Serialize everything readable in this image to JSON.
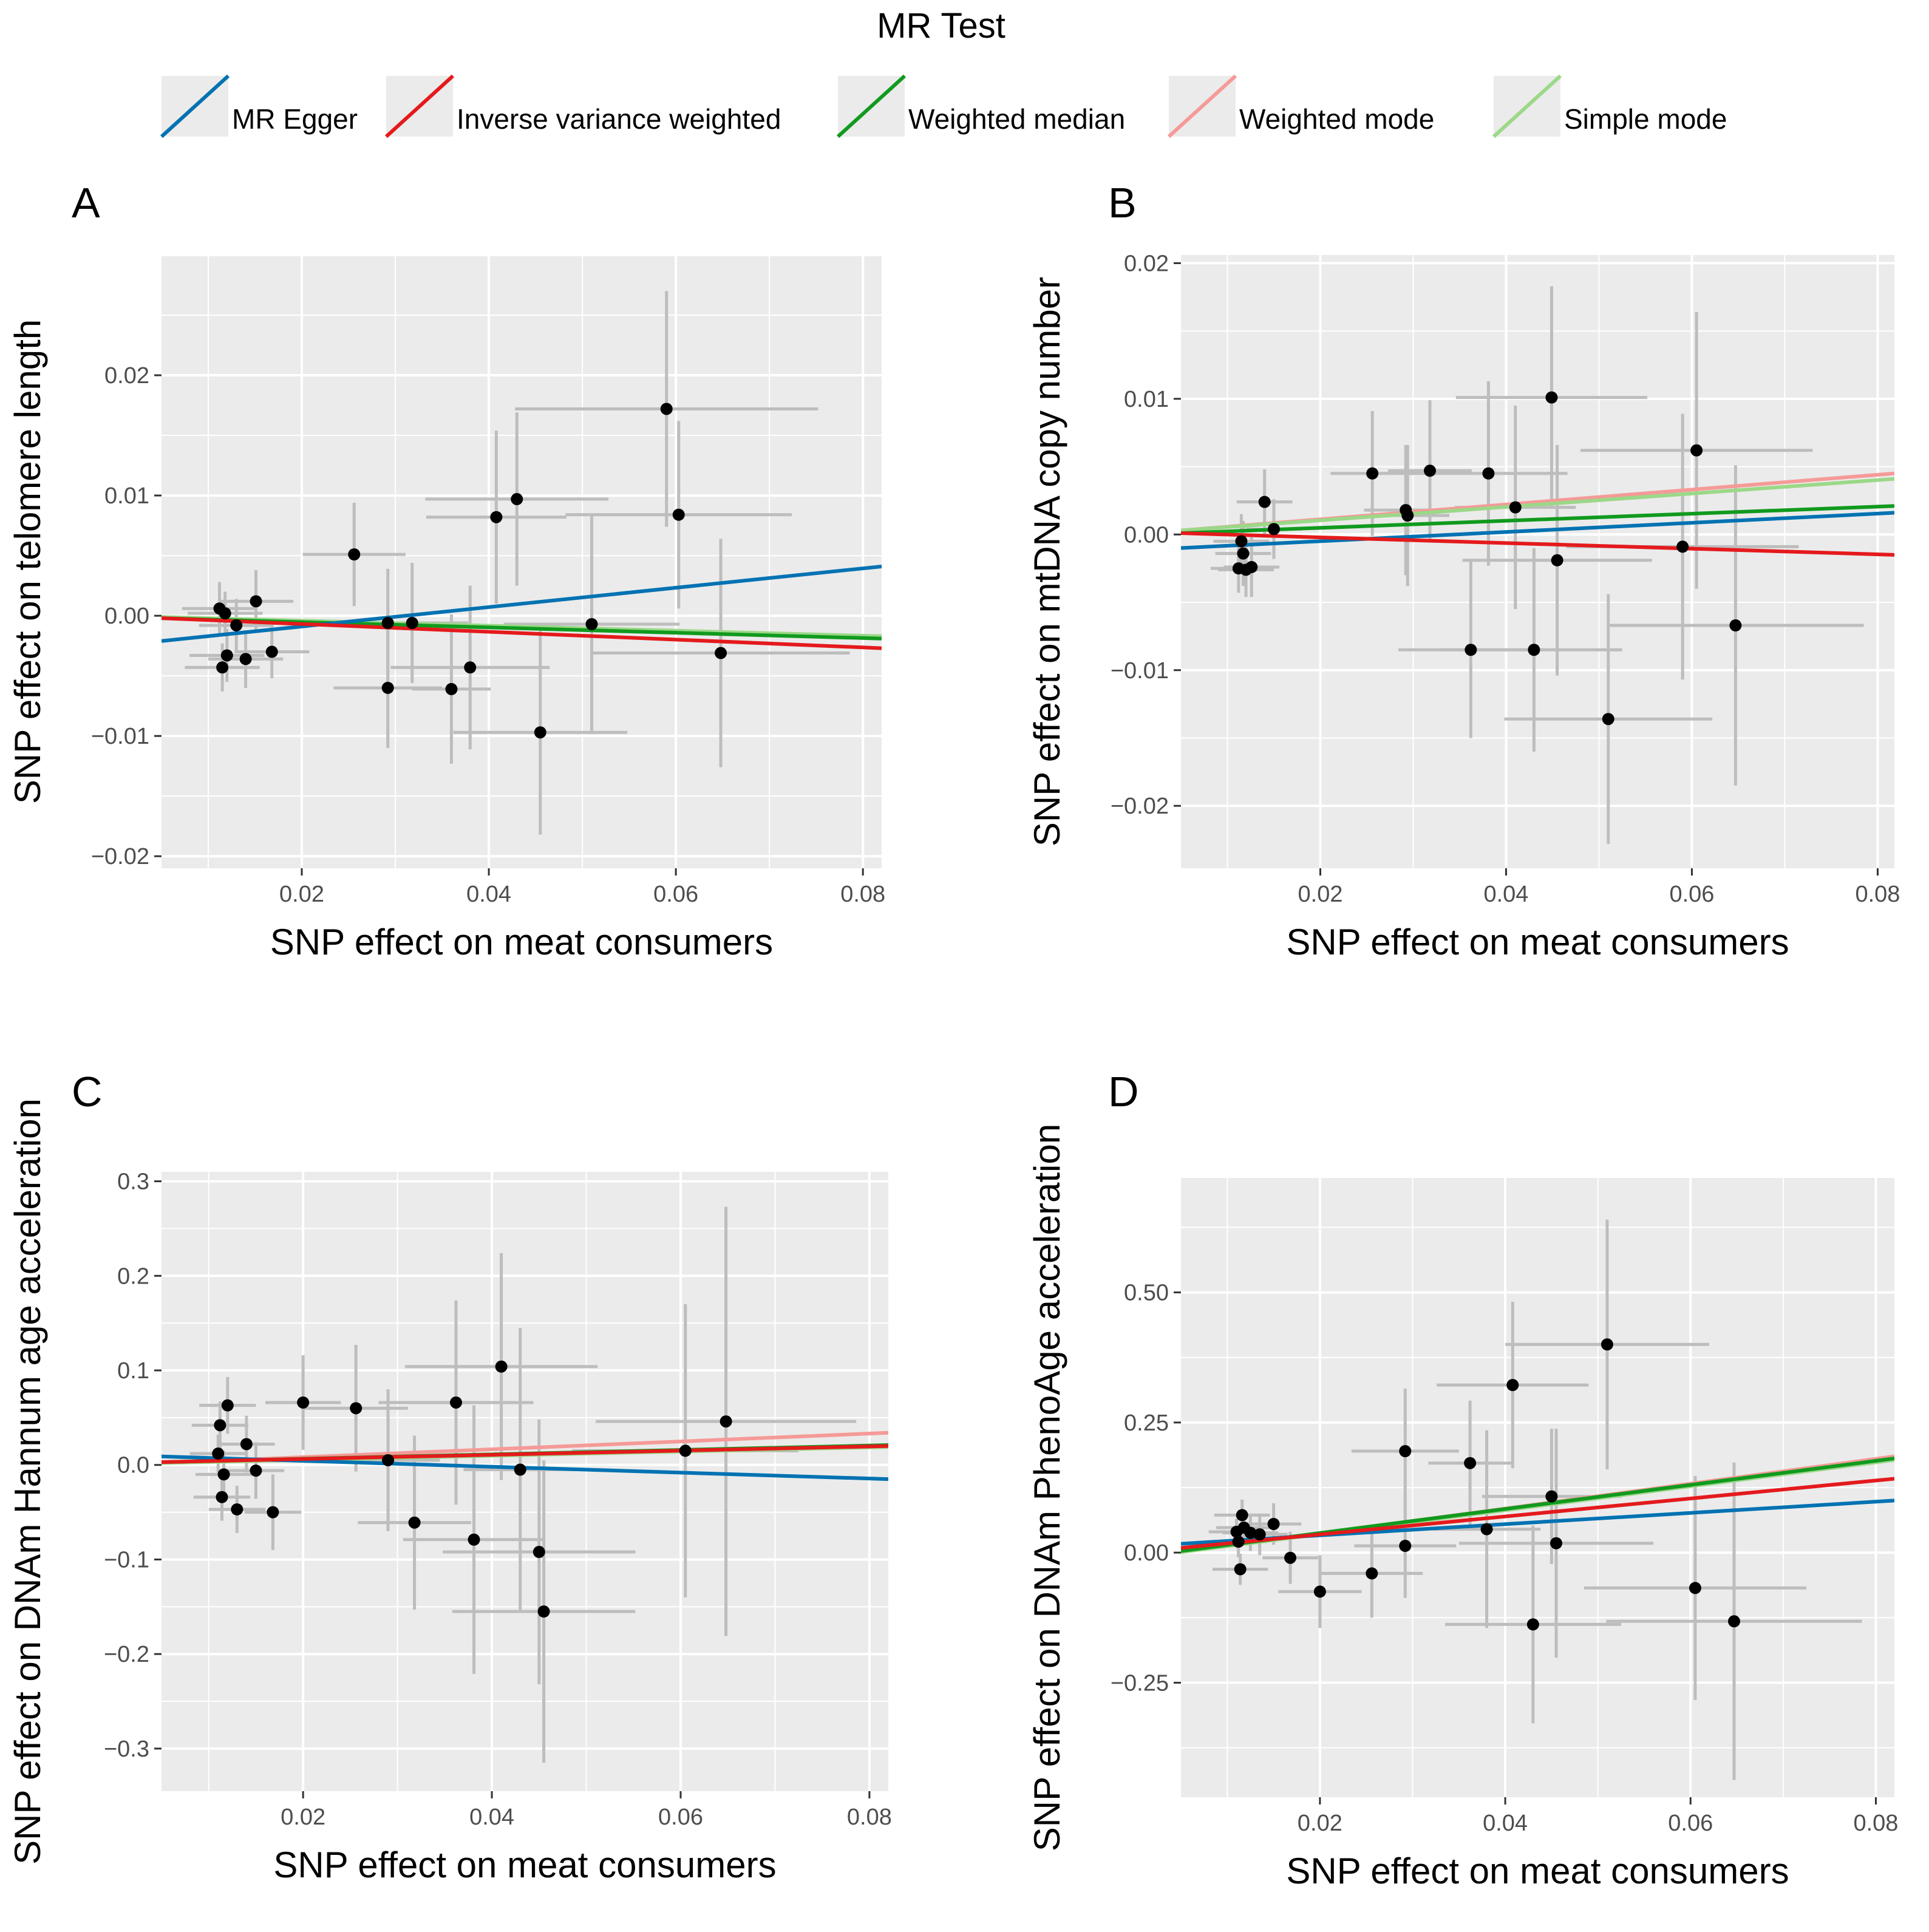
{
  "legend": {
    "title": "MR Test",
    "methods": [
      {
        "name": "MR Egger",
        "color": "#0072B2"
      },
      {
        "name": "Inverse variance weighted",
        "color": "#E41A1C"
      },
      {
        "name": "Weighted median",
        "color": "#119A1E"
      },
      {
        "name": "Weighted mode",
        "color": "#F59A98"
      },
      {
        "name": "Simple mode",
        "color": "#9BD888"
      }
    ]
  },
  "chart_data": [
    {
      "type": "scatter",
      "panel": "A",
      "xlabel": "SNP effect on meat consumers",
      "ylabel": "SNP effect on telomere length",
      "xlim": [
        0.005,
        0.082
      ],
      "ylim": [
        -0.021,
        0.03
      ],
      "xticks": [
        0.02,
        0.04,
        0.06,
        0.08
      ],
      "xtick_labels": [
        "0.02",
        "0.04",
        "0.06",
        "0.08"
      ],
      "yticks": [
        -0.02,
        -0.01,
        0.0,
        0.01,
        0.02
      ],
      "ytick_labels": [
        "−0.02",
        "−0.01",
        "0.00",
        "0.01",
        "0.02"
      ],
      "points": [
        {
          "x": 0.0112,
          "y": 0.0006,
          "sx": 0.004,
          "sy": 0.0022
        },
        {
          "x": 0.0115,
          "y": -0.0043,
          "sx": 0.004,
          "sy": 0.002
        },
        {
          "x": 0.0118,
          "y": 0.0002,
          "sx": 0.004,
          "sy": 0.0018
        },
        {
          "x": 0.012,
          "y": -0.0033,
          "sx": 0.004,
          "sy": 0.0022
        },
        {
          "x": 0.013,
          "y": -0.0008,
          "sx": 0.004,
          "sy": 0.0022
        },
        {
          "x": 0.014,
          "y": -0.0036,
          "sx": 0.004,
          "sy": 0.0024
        },
        {
          "x": 0.0151,
          "y": 0.0012,
          "sx": 0.004,
          "sy": 0.0026
        },
        {
          "x": 0.0168,
          "y": -0.003,
          "sx": 0.004,
          "sy": 0.0022
        },
        {
          "x": 0.0256,
          "y": 0.0051,
          "sx": 0.0055,
          "sy": 0.0043
        },
        {
          "x": 0.0292,
          "y": -0.006,
          "sx": 0.0058,
          "sy": 0.005
        },
        {
          "x": 0.0292,
          "y": -0.0006,
          "sx": 0.0055,
          "sy": 0.0045
        },
        {
          "x": 0.0318,
          "y": -0.0006,
          "sx": 0.006,
          "sy": 0.005
        },
        {
          "x": 0.036,
          "y": -0.0061,
          "sx": 0.0042,
          "sy": 0.0062
        },
        {
          "x": 0.038,
          "y": -0.0043,
          "sx": 0.0085,
          "sy": 0.0068
        },
        {
          "x": 0.0408,
          "y": 0.0082,
          "sx": 0.0075,
          "sy": 0.0072
        },
        {
          "x": 0.043,
          "y": 0.0097,
          "sx": 0.0098,
          "sy": 0.0072
        },
        {
          "x": 0.0455,
          "y": -0.0097,
          "sx": 0.0093,
          "sy": 0.0085
        },
        {
          "x": 0.051,
          "y": -0.0007,
          "sx": 0.0094,
          "sy": 0.009
        },
        {
          "x": 0.059,
          "y": 0.0172,
          "sx": 0.0162,
          "sy": 0.0098
        },
        {
          "x": 0.0603,
          "y": 0.0084,
          "sx": 0.0121,
          "sy": 0.0078
        },
        {
          "x": 0.0648,
          "y": -0.0031,
          "sx": 0.0138,
          "sy": 0.0095
        }
      ],
      "lines": [
        {
          "method": "MR Egger",
          "x": [
            0.005,
            0.082
          ],
          "y": [
            -0.0021,
            0.0041
          ]
        },
        {
          "method": "Inverse variance weighted",
          "x": [
            0.005,
            0.082
          ],
          "y": [
            -0.0002,
            -0.0027
          ]
        },
        {
          "method": "Weighted median",
          "x": [
            0.005,
            0.082
          ],
          "y": [
            -0.0002,
            -0.0019
          ]
        },
        {
          "method": "Weighted mode",
          "x": [
            0.005,
            0.082
          ],
          "y": [
            -0.0001,
            -0.0018
          ]
        },
        {
          "method": "Simple mode",
          "x": [
            0.005,
            0.082
          ],
          "y": [
            -0.0001,
            -0.0017
          ]
        }
      ]
    },
    {
      "type": "scatter",
      "panel": "B",
      "xlabel": "SNP effect on meat consumers",
      "ylabel": "SNP effect on mtDNA copy number",
      "xlim": [
        0.005,
        0.0818
      ],
      "ylim": [
        -0.0246,
        0.0206
      ],
      "xticks": [
        0.02,
        0.04,
        0.06,
        0.08
      ],
      "xtick_labels": [
        "0.02",
        "0.04",
        "0.06",
        "0.08"
      ],
      "yticks": [
        -0.02,
        -0.01,
        0.0,
        0.01,
        0.02
      ],
      "ytick_labels": [
        "−0.02",
        "−0.01",
        "0.00",
        "0.01",
        "0.02"
      ],
      "points": [
        {
          "x": 0.0112,
          "y": -0.0025,
          "sx": 0.003,
          "sy": 0.0018
        },
        {
          "x": 0.0115,
          "y": -0.0005,
          "sx": 0.003,
          "sy": 0.002
        },
        {
          "x": 0.0117,
          "y": -0.0014,
          "sx": 0.003,
          "sy": 0.0024
        },
        {
          "x": 0.012,
          "y": -0.0026,
          "sx": 0.003,
          "sy": 0.002
        },
        {
          "x": 0.0126,
          "y": -0.0024,
          "sx": 0.003,
          "sy": 0.0022
        },
        {
          "x": 0.014,
          "y": 0.0024,
          "sx": 0.003,
          "sy": 0.0024
        },
        {
          "x": 0.015,
          "y": 0.0004,
          "sx": 0.003,
          "sy": 0.0022
        },
        {
          "x": 0.0256,
          "y": 0.0045,
          "sx": 0.0045,
          "sy": 0.0046
        },
        {
          "x": 0.0292,
          "y": 0.0018,
          "sx": 0.0045,
          "sy": 0.0048
        },
        {
          "x": 0.0294,
          "y": 0.0014,
          "sx": 0.0045,
          "sy": 0.0052
        },
        {
          "x": 0.0318,
          "y": 0.0047,
          "sx": 0.0045,
          "sy": 0.0052
        },
        {
          "x": 0.0362,
          "y": -0.0085,
          "sx": 0.0078,
          "sy": 0.0065
        },
        {
          "x": 0.0381,
          "y": 0.0045,
          "sx": 0.0085,
          "sy": 0.0068
        },
        {
          "x": 0.041,
          "y": 0.002,
          "sx": 0.0065,
          "sy": 0.0075
        },
        {
          "x": 0.043,
          "y": -0.0085,
          "sx": 0.0095,
          "sy": 0.0075
        },
        {
          "x": 0.0449,
          "y": 0.0101,
          "sx": 0.0103,
          "sy": 0.0082
        },
        {
          "x": 0.0455,
          "y": -0.0019,
          "sx": 0.0102,
          "sy": 0.0085
        },
        {
          "x": 0.051,
          "y": -0.0136,
          "sx": 0.0112,
          "sy": 0.0092
        },
        {
          "x": 0.059,
          "y": -0.0009,
          "sx": 0.0125,
          "sy": 0.0098
        },
        {
          "x": 0.0605,
          "y": 0.0062,
          "sx": 0.0125,
          "sy": 0.0102
        },
        {
          "x": 0.0647,
          "y": -0.0067,
          "sx": 0.0138,
          "sy": 0.0118
        }
      ],
      "lines": [
        {
          "method": "MR Egger",
          "x": [
            0.005,
            0.0818
          ],
          "y": [
            -0.001,
            0.0016
          ]
        },
        {
          "method": "Inverse variance weighted",
          "x": [
            0.005,
            0.0818
          ],
          "y": [
            0.0001,
            -0.0015
          ]
        },
        {
          "method": "Weighted median",
          "x": [
            0.005,
            0.0818
          ],
          "y": [
            0.0001,
            0.0021
          ]
        },
        {
          "method": "Weighted mode",
          "x": [
            0.005,
            0.0818
          ],
          "y": [
            0.0003,
            0.0045
          ]
        },
        {
          "method": "Simple mode",
          "x": [
            0.005,
            0.0818
          ],
          "y": [
            0.0003,
            0.0041
          ]
        }
      ]
    },
    {
      "type": "scatter",
      "panel": "C",
      "xlabel": "SNP effect on meat consumers",
      "ylabel": "SNP effect on DNAm Hannum age acceleration",
      "xlim": [
        0.005,
        0.082
      ],
      "ylim": [
        -0.345,
        0.31
      ],
      "xticks": [
        0.02,
        0.04,
        0.06,
        0.08
      ],
      "xtick_labels": [
        "0.02",
        "0.04",
        "0.06",
        "0.08"
      ],
      "yticks": [
        -0.3,
        -0.2,
        -0.1,
        0.0,
        0.1,
        0.2,
        0.3
      ],
      "ytick_labels": [
        "−0.3",
        "−0.2",
        "−0.1",
        "0.0",
        "0.1",
        "0.2",
        "0.3"
      ],
      "points": [
        {
          "x": 0.011,
          "y": 0.012,
          "sx": 0.003,
          "sy": 0.02
        },
        {
          "x": 0.0112,
          "y": 0.042,
          "sx": 0.003,
          "sy": 0.025
        },
        {
          "x": 0.0114,
          "y": -0.034,
          "sx": 0.003,
          "sy": 0.025
        },
        {
          "x": 0.0116,
          "y": -0.01,
          "sx": 0.003,
          "sy": 0.025
        },
        {
          "x": 0.012,
          "y": 0.063,
          "sx": 0.003,
          "sy": 0.03
        },
        {
          "x": 0.013,
          "y": -0.047,
          "sx": 0.003,
          "sy": 0.025
        },
        {
          "x": 0.014,
          "y": 0.022,
          "sx": 0.003,
          "sy": 0.03
        },
        {
          "x": 0.015,
          "y": -0.006,
          "sx": 0.003,
          "sy": 0.03
        },
        {
          "x": 0.0168,
          "y": -0.05,
          "sx": 0.003,
          "sy": 0.04
        },
        {
          "x": 0.02,
          "y": 0.066,
          "sx": 0.004,
          "sy": 0.05
        },
        {
          "x": 0.0256,
          "y": 0.06,
          "sx": 0.0055,
          "sy": 0.067
        },
        {
          "x": 0.029,
          "y": 0.005,
          "sx": 0.0055,
          "sy": 0.075
        },
        {
          "x": 0.0318,
          "y": -0.061,
          "sx": 0.006,
          "sy": 0.092
        },
        {
          "x": 0.0362,
          "y": 0.066,
          "sx": 0.0082,
          "sy": 0.108
        },
        {
          "x": 0.0381,
          "y": -0.079,
          "sx": 0.0075,
          "sy": 0.142
        },
        {
          "x": 0.041,
          "y": 0.104,
          "sx": 0.0102,
          "sy": 0.12
        },
        {
          "x": 0.043,
          "y": -0.005,
          "sx": 0.006,
          "sy": 0.15
        },
        {
          "x": 0.045,
          "y": -0.092,
          "sx": 0.0102,
          "sy": 0.14
        },
        {
          "x": 0.0455,
          "y": -0.155,
          "sx": 0.0097,
          "sy": 0.16
        },
        {
          "x": 0.0605,
          "y": 0.015,
          "sx": 0.012,
          "sy": 0.155
        },
        {
          "x": 0.0648,
          "y": 0.046,
          "sx": 0.0138,
          "sy": 0.227
        }
      ],
      "lines": [
        {
          "method": "MR Egger",
          "x": [
            0.005,
            0.082
          ],
          "y": [
            0.009,
            -0.015
          ]
        },
        {
          "method": "Inverse variance weighted",
          "x": [
            0.005,
            0.082
          ],
          "y": [
            0.003,
            0.02
          ]
        },
        {
          "method": "Weighted median",
          "x": [
            0.005,
            0.082
          ],
          "y": [
            0.003,
            0.021
          ]
        },
        {
          "method": "Weighted mode",
          "x": [
            0.005,
            0.082
          ],
          "y": [
            0.002,
            0.034
          ]
        },
        {
          "method": "Simple mode",
          "x": [
            0.005,
            0.082
          ],
          "y": [
            0.002,
            0.019
          ]
        }
      ]
    },
    {
      "type": "scatter",
      "panel": "D",
      "xlabel": "SNP effect on meat consumers",
      "ylabel": "SNP effect on DNAm PhenoAge acceleration",
      "xlim": [
        0.005,
        0.082
      ],
      "ylim": [
        -0.47,
        0.72
      ],
      "xticks": [
        0.02,
        0.04,
        0.06,
        0.08
      ],
      "xtick_labels": [
        "0.02",
        "0.04",
        "0.06",
        "0.08"
      ],
      "yticks": [
        -0.25,
        0.0,
        0.25,
        0.5
      ],
      "ytick_labels": [
        "−0.25",
        "0.00",
        "0.25",
        "0.50"
      ],
      "points": [
        {
          "x": 0.011,
          "y": 0.04,
          "sx": 0.003,
          "sy": 0.025
        },
        {
          "x": 0.0112,
          "y": 0.021,
          "sx": 0.003,
          "sy": 0.03
        },
        {
          "x": 0.0114,
          "y": -0.032,
          "sx": 0.003,
          "sy": 0.03
        },
        {
          "x": 0.0116,
          "y": 0.072,
          "sx": 0.003,
          "sy": 0.03
        },
        {
          "x": 0.0118,
          "y": 0.048,
          "sx": 0.003,
          "sy": 0.035
        },
        {
          "x": 0.0125,
          "y": 0.038,
          "sx": 0.003,
          "sy": 0.035
        },
        {
          "x": 0.0135,
          "y": 0.035,
          "sx": 0.003,
          "sy": 0.04
        },
        {
          "x": 0.015,
          "y": 0.055,
          "sx": 0.003,
          "sy": 0.04
        },
        {
          "x": 0.0168,
          "y": -0.01,
          "sx": 0.003,
          "sy": 0.05
        },
        {
          "x": 0.02,
          "y": -0.075,
          "sx": 0.0045,
          "sy": 0.07
        },
        {
          "x": 0.0256,
          "y": -0.04,
          "sx": 0.0055,
          "sy": 0.085
        },
        {
          "x": 0.0292,
          "y": 0.195,
          "sx": 0.0058,
          "sy": 0.12
        },
        {
          "x": 0.0292,
          "y": 0.013,
          "sx": 0.0055,
          "sy": 0.1
        },
        {
          "x": 0.0362,
          "y": 0.172,
          "sx": 0.0045,
          "sy": 0.12
        },
        {
          "x": 0.038,
          "y": 0.045,
          "sx": 0.0058,
          "sy": 0.19
        },
        {
          "x": 0.0408,
          "y": 0.322,
          "sx": 0.0082,
          "sy": 0.16
        },
        {
          "x": 0.043,
          "y": -0.138,
          "sx": 0.0095,
          "sy": 0.19
        },
        {
          "x": 0.045,
          "y": 0.108,
          "sx": 0.0075,
          "sy": 0.13
        },
        {
          "x": 0.0455,
          "y": 0.018,
          "sx": 0.0105,
          "sy": 0.22
        },
        {
          "x": 0.051,
          "y": 0.4,
          "sx": 0.011,
          "sy": 0.24
        },
        {
          "x": 0.0605,
          "y": -0.068,
          "sx": 0.012,
          "sy": 0.215
        },
        {
          "x": 0.0647,
          "y": -0.132,
          "sx": 0.0138,
          "sy": 0.305
        }
      ],
      "lines": [
        {
          "method": "MR Egger",
          "x": [
            0.005,
            0.082
          ],
          "y": [
            0.017,
            0.1
          ]
        },
        {
          "method": "Inverse variance weighted",
          "x": [
            0.005,
            0.082
          ],
          "y": [
            0.009,
            0.142
          ]
        },
        {
          "method": "Weighted median",
          "x": [
            0.005,
            0.082
          ],
          "y": [
            0.003,
            0.181
          ]
        },
        {
          "method": "Weighted mode",
          "x": [
            0.005,
            0.082
          ],
          "y": [
            0.001,
            0.185
          ]
        },
        {
          "method": "Simple mode",
          "x": [
            0.005,
            0.082
          ],
          "y": [
            0.001,
            0.178
          ]
        }
      ]
    }
  ]
}
